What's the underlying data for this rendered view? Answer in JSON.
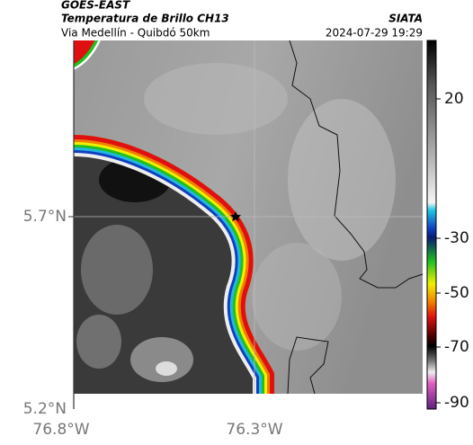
{
  "header": {
    "title": "GOES-EAST",
    "subtitle": "Temperatura de Brillo CH13",
    "route": "Via Medellín - Quibdó 50km",
    "source": "SIATA",
    "datetime": "2024-07-29 19:29"
  },
  "axes": {
    "lat_labels": [
      "5.7°N",
      "5.2°N"
    ],
    "lon_labels": [
      "76.8°W",
      "76.3°W"
    ]
  },
  "colorbar": {
    "labels": [
      "20",
      "-30",
      "-50",
      "-70",
      "-90"
    ]
  }
}
